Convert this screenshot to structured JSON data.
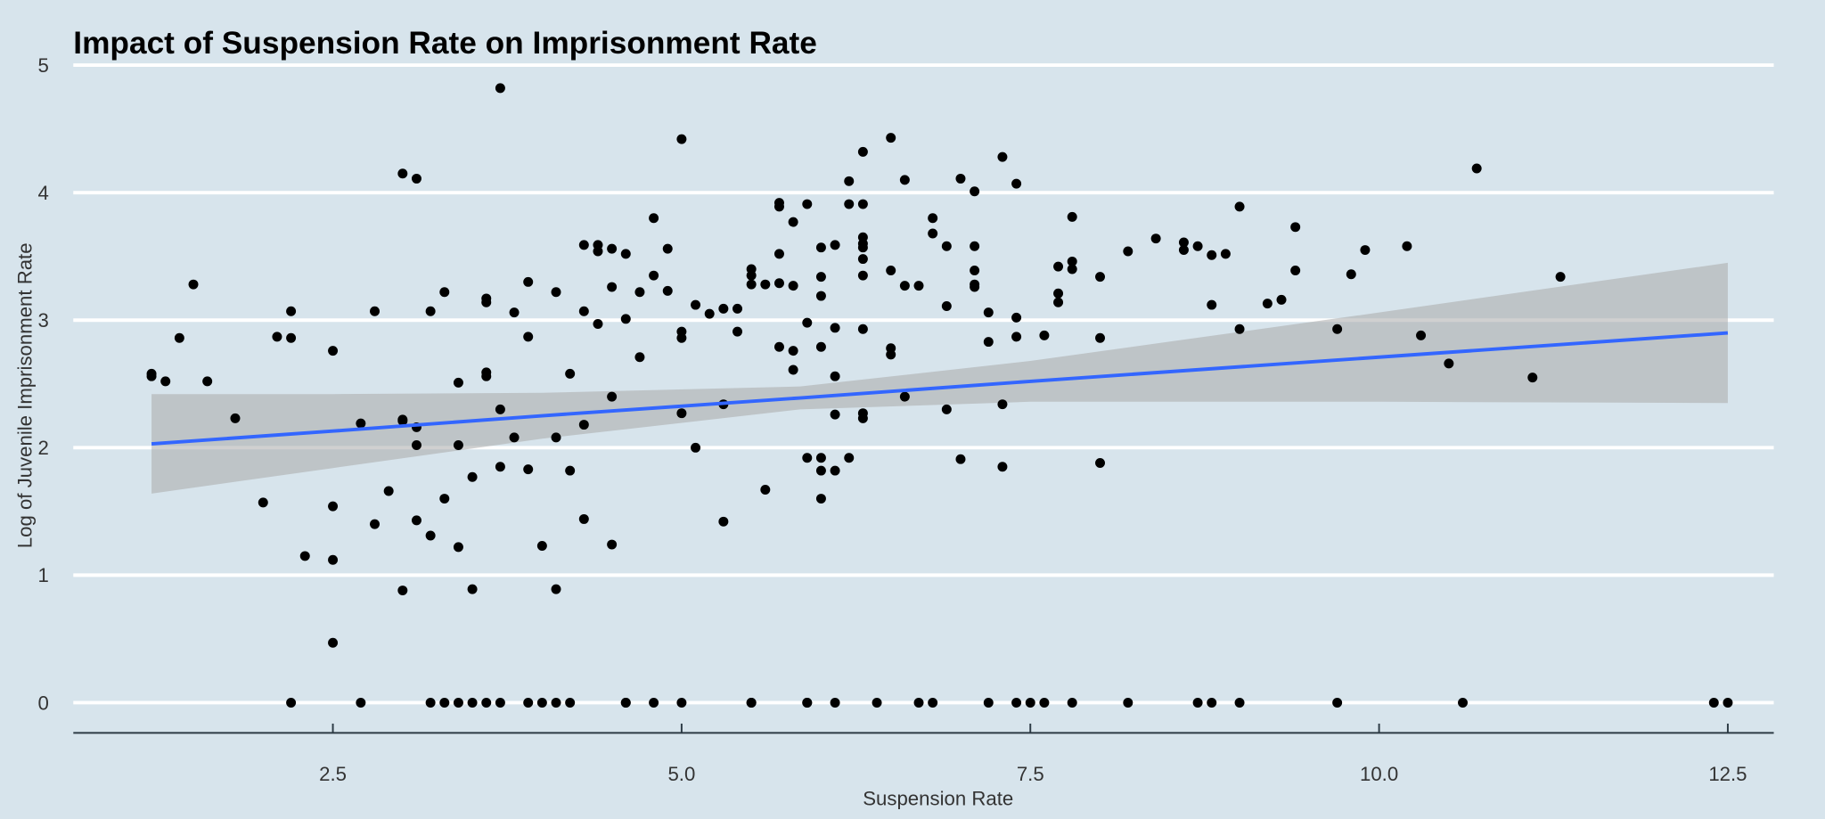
{
  "chart_data": {
    "type": "scatter",
    "title": "Impact of Suspension Rate on Imprisonment Rate",
    "xlabel": "Suspension Rate",
    "ylabel": "Log of Juvenile Imprisonment Rate",
    "xlim": [
      0.6,
      13.0
    ],
    "ylim": [
      -0.24,
      5.0
    ],
    "x_ticks": [
      "2.5",
      "5.0",
      "7.5",
      "10.0",
      "12.5"
    ],
    "y_ticks": [
      "0",
      "1",
      "2",
      "3",
      "4",
      "5"
    ],
    "grid": "horizontal major lines on",
    "colors": {
      "background": "#d7e4ec",
      "points": "#000000",
      "fit_line": "#3366ff",
      "confidence_band": "#bdbdbd",
      "grid": "#ffffff"
    },
    "points": [
      [
        1.2,
        2.58
      ],
      [
        1.2,
        2.56
      ],
      [
        1.3,
        2.52
      ],
      [
        1.4,
        2.86
      ],
      [
        1.5,
        3.28
      ],
      [
        1.6,
        2.52
      ],
      [
        1.8,
        2.23
      ],
      [
        2.0,
        1.57
      ],
      [
        2.1,
        2.87
      ],
      [
        2.2,
        3.07
      ],
      [
        2.2,
        2.86
      ],
      [
        2.2,
        0
      ],
      [
        2.3,
        1.15
      ],
      [
        2.5,
        2.76
      ],
      [
        2.5,
        1.54
      ],
      [
        2.5,
        1.12
      ],
      [
        2.5,
        0.47
      ],
      [
        2.7,
        2.19
      ],
      [
        2.7,
        0
      ],
      [
        2.8,
        3.07
      ],
      [
        2.8,
        1.4
      ],
      [
        2.9,
        1.66
      ],
      [
        3.0,
        4.15
      ],
      [
        3.0,
        2.22
      ],
      [
        3.0,
        2.21
      ],
      [
        3.0,
        0.88
      ],
      [
        3.1,
        4.11
      ],
      [
        3.1,
        2.16
      ],
      [
        3.1,
        2.02
      ],
      [
        3.1,
        1.43
      ],
      [
        3.2,
        3.07
      ],
      [
        3.2,
        1.31
      ],
      [
        3.2,
        0
      ],
      [
        3.3,
        3.22
      ],
      [
        3.3,
        1.6
      ],
      [
        3.3,
        0
      ],
      [
        3.4,
        2.51
      ],
      [
        3.4,
        2.02
      ],
      [
        3.4,
        1.22
      ],
      [
        3.4,
        0
      ],
      [
        3.5,
        1.77
      ],
      [
        3.5,
        0.89
      ],
      [
        3.5,
        0
      ],
      [
        3.6,
        3.17
      ],
      [
        3.6,
        3.14
      ],
      [
        3.6,
        2.59
      ],
      [
        3.6,
        2.56
      ],
      [
        3.6,
        0
      ],
      [
        3.7,
        4.82
      ],
      [
        3.7,
        2.3
      ],
      [
        3.7,
        1.85
      ],
      [
        3.7,
        0
      ],
      [
        3.8,
        3.06
      ],
      [
        3.8,
        2.08
      ],
      [
        3.9,
        3.3
      ],
      [
        3.9,
        2.87
      ],
      [
        3.9,
        1.83
      ],
      [
        3.9,
        0
      ],
      [
        4.0,
        1.23
      ],
      [
        4.0,
        0
      ],
      [
        4.1,
        3.22
      ],
      [
        4.1,
        2.08
      ],
      [
        4.1,
        0.89
      ],
      [
        4.1,
        0
      ],
      [
        4.2,
        2.58
      ],
      [
        4.2,
        1.82
      ],
      [
        4.2,
        0
      ],
      [
        4.3,
        3.59
      ],
      [
        4.3,
        3.07
      ],
      [
        4.3,
        2.18
      ],
      [
        4.3,
        1.44
      ],
      [
        4.4,
        3.59
      ],
      [
        4.4,
        3.54
      ],
      [
        4.4,
        2.97
      ],
      [
        4.5,
        3.56
      ],
      [
        4.5,
        3.26
      ],
      [
        4.5,
        2.4
      ],
      [
        4.5,
        1.24
      ],
      [
        4.6,
        3.52
      ],
      [
        4.6,
        3.01
      ],
      [
        4.6,
        0
      ],
      [
        4.6,
        0
      ],
      [
        4.7,
        3.22
      ],
      [
        4.7,
        2.71
      ],
      [
        4.8,
        3.8
      ],
      [
        4.8,
        3.35
      ],
      [
        4.8,
        0
      ],
      [
        4.9,
        3.56
      ],
      [
        4.9,
        3.23
      ],
      [
        5.0,
        4.42
      ],
      [
        5.0,
        2.91
      ],
      [
        5.0,
        2.86
      ],
      [
        5.0,
        2.27
      ],
      [
        5.0,
        0
      ],
      [
        5.1,
        3.12
      ],
      [
        5.1,
        2.0
      ],
      [
        5.2,
        3.05
      ],
      [
        5.3,
        3.09
      ],
      [
        5.3,
        2.34
      ],
      [
        5.3,
        1.42
      ],
      [
        5.4,
        3.09
      ],
      [
        5.4,
        2.91
      ],
      [
        5.5,
        3.4
      ],
      [
        5.5,
        3.35
      ],
      [
        5.5,
        3.28
      ],
      [
        5.5,
        0
      ],
      [
        5.5,
        0
      ],
      [
        5.6,
        3.28
      ],
      [
        5.6,
        1.67
      ],
      [
        5.7,
        3.92
      ],
      [
        5.7,
        3.89
      ],
      [
        5.7,
        3.52
      ],
      [
        5.7,
        3.29
      ],
      [
        5.7,
        2.79
      ],
      [
        5.8,
        3.77
      ],
      [
        5.8,
        3.27
      ],
      [
        5.8,
        2.76
      ],
      [
        5.8,
        2.61
      ],
      [
        5.9,
        3.91
      ],
      [
        5.9,
        2.98
      ],
      [
        5.9,
        1.92
      ],
      [
        5.9,
        0
      ],
      [
        5.9,
        0
      ],
      [
        6.0,
        3.57
      ],
      [
        6.0,
        3.34
      ],
      [
        6.0,
        3.19
      ],
      [
        6.0,
        2.79
      ],
      [
        6.0,
        1.92
      ],
      [
        6.0,
        1.82
      ],
      [
        6.0,
        1.6
      ],
      [
        6.1,
        3.59
      ],
      [
        6.1,
        2.94
      ],
      [
        6.1,
        2.56
      ],
      [
        6.1,
        2.26
      ],
      [
        6.1,
        1.82
      ],
      [
        6.1,
        0
      ],
      [
        6.2,
        4.09
      ],
      [
        6.2,
        3.91
      ],
      [
        6.2,
        1.92
      ],
      [
        6.3,
        4.32
      ],
      [
        6.3,
        3.91
      ],
      [
        6.3,
        3.65
      ],
      [
        6.3,
        3.6
      ],
      [
        6.3,
        3.57
      ],
      [
        6.3,
        3.48
      ],
      [
        6.3,
        3.35
      ],
      [
        6.3,
        2.93
      ],
      [
        6.3,
        2.27
      ],
      [
        6.3,
        2.23
      ],
      [
        6.4,
        0
      ],
      [
        6.5,
        4.43
      ],
      [
        6.5,
        3.39
      ],
      [
        6.5,
        2.78
      ],
      [
        6.5,
        2.73
      ],
      [
        6.6,
        4.1
      ],
      [
        6.6,
        3.27
      ],
      [
        6.6,
        2.4
      ],
      [
        6.7,
        3.27
      ],
      [
        6.7,
        0
      ],
      [
        6.8,
        3.8
      ],
      [
        6.8,
        3.68
      ],
      [
        6.8,
        0
      ],
      [
        6.9,
        3.58
      ],
      [
        6.9,
        3.11
      ],
      [
        6.9,
        2.3
      ],
      [
        7.0,
        4.11
      ],
      [
        7.0,
        1.91
      ],
      [
        7.1,
        4.01
      ],
      [
        7.1,
        3.58
      ],
      [
        7.1,
        3.39
      ],
      [
        7.1,
        3.28
      ],
      [
        7.1,
        3.26
      ],
      [
        7.2,
        3.06
      ],
      [
        7.2,
        2.83
      ],
      [
        7.2,
        0
      ],
      [
        7.3,
        4.28
      ],
      [
        7.3,
        2.34
      ],
      [
        7.3,
        1.85
      ],
      [
        7.4,
        4.07
      ],
      [
        7.4,
        3.02
      ],
      [
        7.4,
        2.87
      ],
      [
        7.4,
        0
      ],
      [
        7.5,
        0
      ],
      [
        7.6,
        0
      ],
      [
        7.6,
        2.88
      ],
      [
        7.7,
        3.42
      ],
      [
        7.7,
        3.21
      ],
      [
        7.7,
        3.14
      ],
      [
        7.8,
        3.81
      ],
      [
        7.8,
        3.46
      ],
      [
        7.8,
        3.4
      ],
      [
        7.8,
        0
      ],
      [
        8.0,
        3.34
      ],
      [
        8.0,
        2.86
      ],
      [
        8.0,
        1.88
      ],
      [
        8.2,
        3.54
      ],
      [
        8.2,
        0
      ],
      [
        8.4,
        3.64
      ],
      [
        8.6,
        3.61
      ],
      [
        8.6,
        3.55
      ],
      [
        8.7,
        3.58
      ],
      [
        8.7,
        0
      ],
      [
        8.8,
        3.51
      ],
      [
        8.8,
        3.12
      ],
      [
        8.8,
        0
      ],
      [
        8.9,
        3.52
      ],
      [
        9.0,
        3.89
      ],
      [
        9.0,
        2.93
      ],
      [
        9.0,
        0
      ],
      [
        9.2,
        3.13
      ],
      [
        9.3,
        3.16
      ],
      [
        9.4,
        3.73
      ],
      [
        9.4,
        3.39
      ],
      [
        9.7,
        2.93
      ],
      [
        9.7,
        0
      ],
      [
        9.8,
        3.36
      ],
      [
        9.9,
        3.55
      ],
      [
        10.2,
        3.58
      ],
      [
        10.3,
        2.88
      ],
      [
        10.5,
        2.66
      ],
      [
        10.6,
        0
      ],
      [
        10.7,
        4.19
      ],
      [
        11.1,
        2.55
      ],
      [
        11.3,
        3.34
      ],
      [
        12.4,
        0
      ],
      [
        12.5,
        0
      ]
    ],
    "fit": {
      "method": "linear",
      "x": [
        1.2,
        2.5,
        4.0,
        5.85,
        7.5,
        10.0,
        12.5
      ],
      "y": [
        2.03,
        2.13,
        2.25,
        2.39,
        2.52,
        2.71,
        2.9
      ],
      "lower": [
        1.64,
        1.84,
        2.07,
        2.3,
        2.36,
        2.36,
        2.35
      ],
      "upper": [
        2.42,
        2.42,
        2.43,
        2.48,
        2.68,
        3.06,
        3.45
      ]
    }
  }
}
